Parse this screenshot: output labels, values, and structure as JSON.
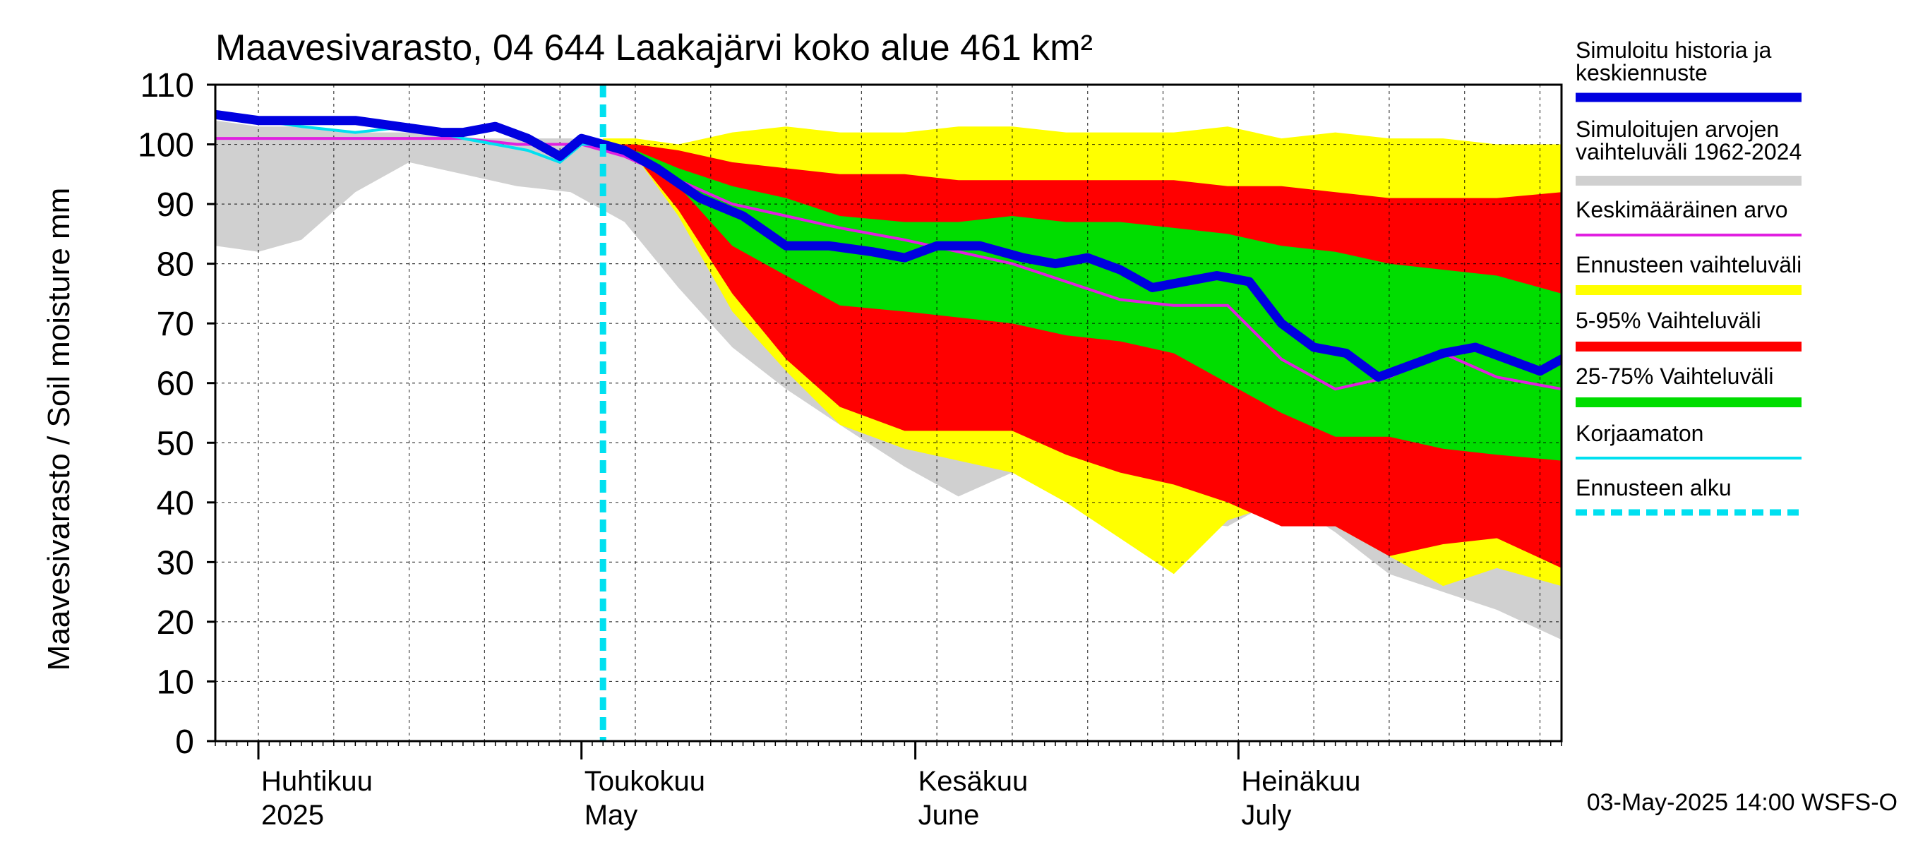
{
  "chart_data": {
    "type": "area",
    "title": "Maavesivarasto, 04 644 Laakajärvi koko alue 461 km²",
    "ylabel": "Maavesivarasto / Soil moisture   mm",
    "ylim": [
      0,
      110
    ],
    "yticks": [
      "0",
      "10",
      "20",
      "30",
      "40",
      "50",
      "60",
      "70",
      "80",
      "90",
      "100",
      "110"
    ],
    "xlim": [
      "2025-03-28",
      "2025-07-31"
    ],
    "grid": true,
    "month_labels": [
      {
        "fi": "Huhtikuu",
        "en": "2025",
        "date": "2025-04-01"
      },
      {
        "fi": "Toukokuu",
        "en": "May",
        "date": "2025-05-01"
      },
      {
        "fi": "Kesäkuu",
        "en": "June",
        "date": "2025-06-01"
      },
      {
        "fi": "Heinäkuu",
        "en": "July",
        "date": "2025-07-01"
      }
    ],
    "forecast_start": "2025-05-03",
    "footer": "03-May-2025 14:00 WSFS-O",
    "colors": {
      "history": "#0000e0",
      "range_1962_2024": "#d0d0d0",
      "mean": "#e020e0",
      "forecast_range": "#ffff00",
      "p5_95": "#ff0000",
      "p25_75": "#00dd00",
      "uncorrected": "#00e0f0",
      "forecast_start": "#00e0f0"
    },
    "legend": [
      {
        "label": "Simuloitu historia ja keskiennuste",
        "key": "history"
      },
      {
        "label": "Simuloitujen arvojen vaihteluväli 1962-2024",
        "key": "range_1962_2024"
      },
      {
        "label": "Keskimääräinen arvo",
        "key": "mean"
      },
      {
        "label": "Ennusteen vaihteluväli",
        "key": "forecast_range"
      },
      {
        "label": "5-95% Vaihteluväli",
        "key": "p5_95"
      },
      {
        "label": "25-75% Vaihteluväli",
        "key": "p25_75"
      },
      {
        "label": "Korjaamaton",
        "key": "uncorrected"
      },
      {
        "label": "Ennusteen alku",
        "key": "forecast_start"
      }
    ],
    "series": {
      "range_1962_2024": {
        "dates": [
          "2025-03-28",
          "2025-04-01",
          "2025-04-05",
          "2025-04-10",
          "2025-04-15",
          "2025-04-20",
          "2025-04-25",
          "2025-04-30",
          "2025-05-05",
          "2025-05-10",
          "2025-05-15",
          "2025-05-20",
          "2025-05-25",
          "2025-05-31",
          "2025-06-05",
          "2025-06-10",
          "2025-06-15",
          "2025-06-20",
          "2025-06-25",
          "2025-06-30",
          "2025-07-05",
          "2025-07-10",
          "2025-07-15",
          "2025-07-20",
          "2025-07-25",
          "2025-07-31"
        ],
        "upper": [
          104,
          103,
          103,
          102,
          102,
          101,
          101,
          101,
          100,
          99,
          97,
          98,
          96,
          98,
          97,
          98,
          99,
          98,
          97,
          95,
          97,
          96,
          95,
          97,
          95,
          96
        ],
        "lower": [
          83,
          82,
          84,
          92,
          97,
          95,
          93,
          92,
          87,
          76,
          66,
          59,
          53,
          46,
          41,
          45,
          46,
          43,
          37,
          36,
          41,
          35,
          28,
          25,
          22,
          17
        ]
      },
      "forecast_range": {
        "dates": [
          "2025-05-03",
          "2025-05-06",
          "2025-05-10",
          "2025-05-15",
          "2025-05-20",
          "2025-05-25",
          "2025-05-31",
          "2025-06-05",
          "2025-06-10",
          "2025-06-15",
          "2025-06-20",
          "2025-06-25",
          "2025-06-30",
          "2025-07-05",
          "2025-07-10",
          "2025-07-15",
          "2025-07-20",
          "2025-07-25",
          "2025-07-31"
        ],
        "upper": [
          101,
          101,
          100,
          102,
          103,
          102,
          102,
          103,
          103,
          102,
          102,
          102,
          103,
          101,
          102,
          101,
          101,
          100,
          100
        ],
        "lower": [
          100,
          98,
          88,
          72,
          62,
          53,
          49,
          47,
          45,
          40,
          34,
          28,
          37,
          40,
          36,
          31,
          26,
          29,
          26
        ]
      },
      "p5_95": {
        "dates": [
          "2025-05-03",
          "2025-05-06",
          "2025-05-10",
          "2025-05-15",
          "2025-05-20",
          "2025-05-25",
          "2025-05-31",
          "2025-06-05",
          "2025-06-10",
          "2025-06-15",
          "2025-06-20",
          "2025-06-25",
          "2025-06-30",
          "2025-07-05",
          "2025-07-10",
          "2025-07-15",
          "2025-07-20",
          "2025-07-25",
          "2025-07-31"
        ],
        "upper": [
          100,
          100,
          99,
          97,
          96,
          95,
          95,
          94,
          94,
          94,
          94,
          94,
          93,
          93,
          92,
          91,
          91,
          91,
          92
        ],
        "lower": [
          100,
          98,
          89,
          75,
          64,
          56,
          52,
          52,
          52,
          48,
          45,
          43,
          40,
          36,
          36,
          31,
          33,
          34,
          29
        ]
      },
      "p25_75": {
        "dates": [
          "2025-05-03",
          "2025-05-06",
          "2025-05-10",
          "2025-05-15",
          "2025-05-20",
          "2025-05-25",
          "2025-05-31",
          "2025-06-05",
          "2025-06-10",
          "2025-06-15",
          "2025-06-20",
          "2025-06-25",
          "2025-06-30",
          "2025-07-05",
          "2025-07-10",
          "2025-07-15",
          "2025-07-20",
          "2025-07-25",
          "2025-07-31"
        ],
        "upper": [
          100,
          99,
          96,
          93,
          91,
          88,
          87,
          87,
          88,
          87,
          87,
          86,
          85,
          83,
          82,
          80,
          79,
          78,
          75
        ],
        "lower": [
          100,
          99,
          93,
          83,
          78,
          73,
          72,
          71,
          70,
          68,
          67,
          65,
          60,
          55,
          51,
          51,
          49,
          48,
          47
        ]
      },
      "mean": {
        "dates": [
          "2025-03-28",
          "2025-04-10",
          "2025-04-20",
          "2025-04-25",
          "2025-05-01",
          "2025-05-05",
          "2025-05-10",
          "2025-05-15",
          "2025-05-20",
          "2025-05-25",
          "2025-05-31",
          "2025-06-05",
          "2025-06-10",
          "2025-06-15",
          "2025-06-20",
          "2025-06-25",
          "2025-06-30",
          "2025-07-05",
          "2025-07-10",
          "2025-07-15",
          "2025-07-20",
          "2025-07-25",
          "2025-07-31"
        ],
        "values": [
          101,
          101,
          101,
          100,
          100,
          98,
          94,
          90,
          88,
          86,
          84,
          82,
          80,
          77,
          74,
          73,
          73,
          64,
          59,
          61,
          65,
          61,
          59
        ]
      },
      "history": {
        "dates": [
          "2025-03-28",
          "2025-04-01",
          "2025-04-05",
          "2025-04-10",
          "2025-04-14",
          "2025-04-18",
          "2025-04-20",
          "2025-04-23",
          "2025-04-26",
          "2025-04-29",
          "2025-05-01",
          "2025-05-03",
          "2025-05-05",
          "2025-05-08",
          "2025-05-12",
          "2025-05-16",
          "2025-05-20",
          "2025-05-24",
          "2025-05-28",
          "2025-05-31",
          "2025-06-03",
          "2025-06-07",
          "2025-06-11",
          "2025-06-14",
          "2025-06-17",
          "2025-06-20",
          "2025-06-23",
          "2025-06-26",
          "2025-06-29",
          "2025-07-02",
          "2025-07-05",
          "2025-07-08",
          "2025-07-11",
          "2025-07-14",
          "2025-07-17",
          "2025-07-20",
          "2025-07-23",
          "2025-07-26",
          "2025-07-29",
          "2025-07-31"
        ],
        "values": [
          105,
          104,
          104,
          104,
          103,
          102,
          102,
          103,
          101,
          98,
          101,
          100,
          99,
          96,
          91,
          88,
          83,
          83,
          82,
          81,
          83,
          83,
          81,
          80,
          81,
          79,
          76,
          77,
          78,
          77,
          70,
          66,
          65,
          61,
          63,
          65,
          66,
          64,
          62,
          64
        ]
      },
      "uncorrected": {
        "dates": [
          "2025-03-28",
          "2025-04-01",
          "2025-04-05",
          "2025-04-10",
          "2025-04-15",
          "2025-04-20",
          "2025-04-23",
          "2025-04-26",
          "2025-04-29",
          "2025-05-01",
          "2025-05-03"
        ],
        "values": [
          105,
          104,
          103,
          102,
          103,
          101,
          100,
          99,
          97,
          100,
          100
        ]
      }
    }
  }
}
